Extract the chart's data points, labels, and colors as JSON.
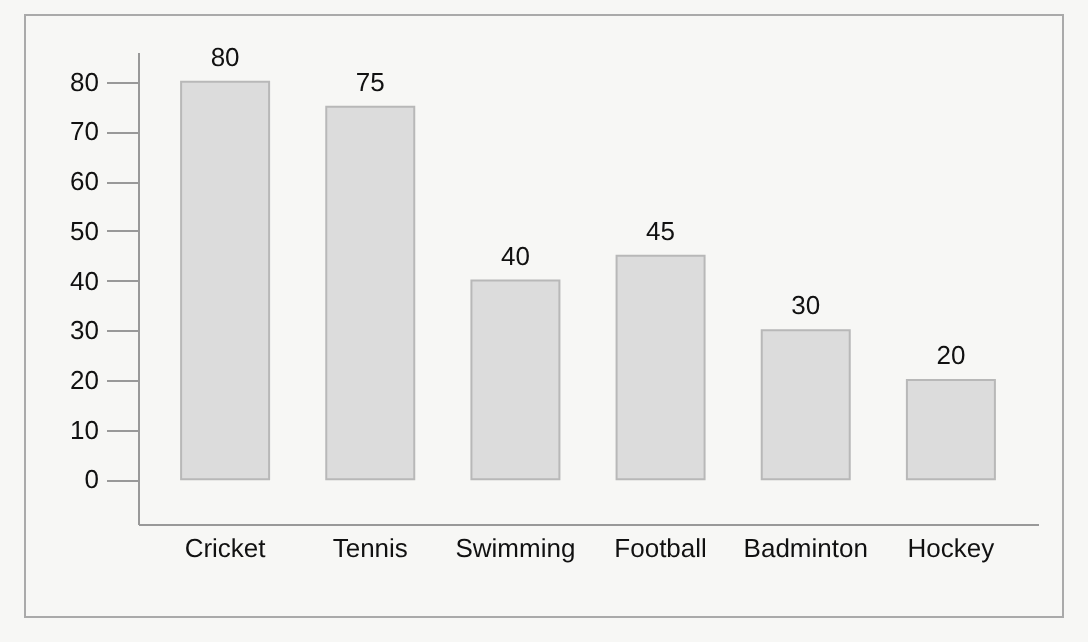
{
  "chart_data": {
    "type": "bar",
    "categories": [
      "Cricket",
      "Tennis",
      "Swimming",
      "Football",
      "Badminton",
      "Hockey"
    ],
    "values": [
      80,
      75,
      40,
      45,
      30,
      20
    ],
    "color": "#dcdcdc",
    "ylim": [
      -9,
      86
    ],
    "yticks": [
      0,
      10,
      20,
      30,
      40,
      50,
      60,
      70,
      80
    ],
    "grid": false,
    "data_labels": true
  }
}
